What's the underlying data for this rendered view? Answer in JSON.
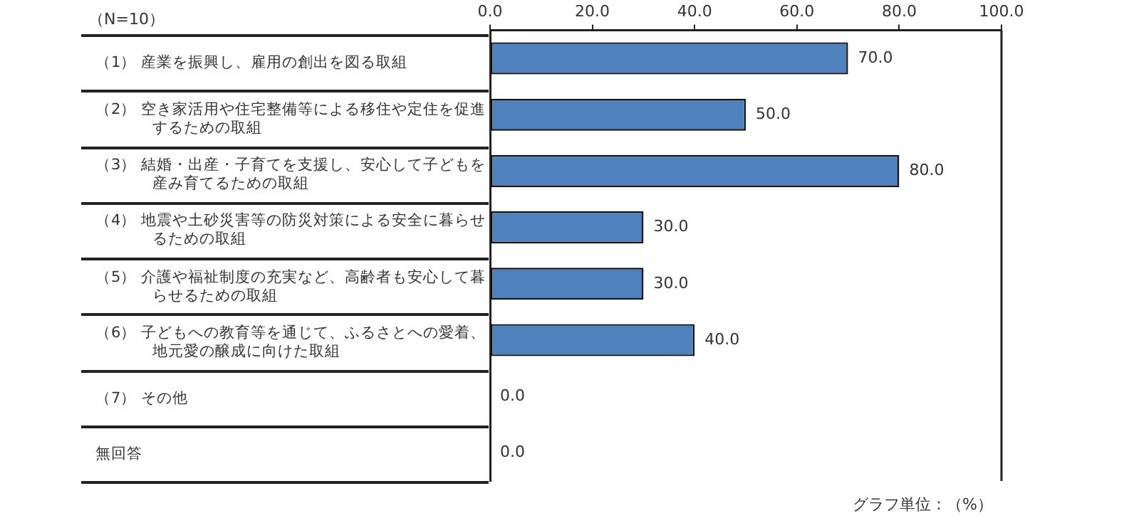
{
  "chart_data": {
    "type": "bar",
    "orientation": "horizontal",
    "categories": [
      "（1） 産業を振興し、雇用の創出を図る取組",
      "（2） 空き家活用や住宅整備等による移住や定住を促進するための取組",
      "（3） 結婚・出産・子育てを支援し、安心して子どもを産み育てるための取組",
      "（4） 地震や土砂災害等の防災対策による安全に暮らせるための取組",
      "（5） 介護や福祉制度の充実など、高齢者も安心して暮らせるための取組",
      "（6） 子どもへの教育等を通じて、ふるさとへの愛着、地元愛の醸成に向けた取組",
      "（7） その他",
      "無回答"
    ],
    "values": [
      70,
      50,
      80,
      30,
      30,
      40,
      0,
      0
    ],
    "value_labels": [
      "70.0",
      "50.0",
      "80.0",
      "30.0",
      "30.0",
      "40.0",
      "0.0",
      "0.0"
    ],
    "color": "#4f81bd",
    "xlim": [
      0,
      100
    ],
    "xticks": [
      {
        "value": 0,
        "label": "0.0"
      },
      {
        "value": 20,
        "label": "20.0"
      },
      {
        "value": 40,
        "label": "40.0"
      },
      {
        "value": 60,
        "label": "60.0"
      },
      {
        "value": 80,
        "label": "80.0"
      },
      {
        "value": 100,
        "label": "100.0"
      }
    ],
    "grid": false,
    "legend": false,
    "annotations": [
      "（N=10）",
      "グラフ単位：（%）"
    ]
  }
}
